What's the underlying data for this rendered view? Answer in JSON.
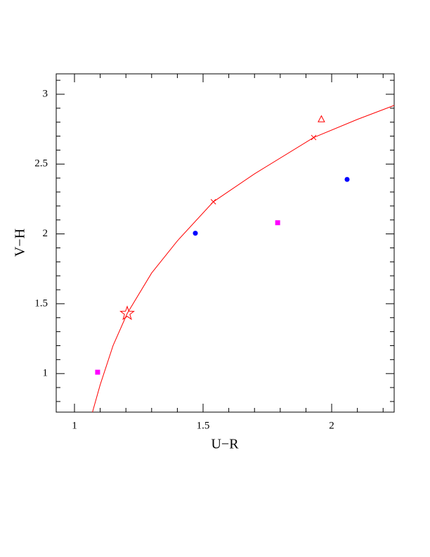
{
  "chart_data": {
    "type": "scatter",
    "xlabel": "U−R",
    "ylabel": "V−H",
    "xlim": [
      0.929,
      2.243
    ],
    "ylim": [
      0.724,
      3.146
    ],
    "xticks": [
      1,
      1.5,
      2
    ],
    "yticks": [
      1,
      1.5,
      2,
      2.5,
      3
    ],
    "xminorticks": [
      1.1,
      1.2,
      1.3,
      1.4,
      1.6,
      1.7,
      1.8,
      1.9,
      2.1,
      2.2
    ],
    "yminorticks": [
      0.8,
      0.9,
      1.1,
      1.2,
      1.3,
      1.4,
      1.6,
      1.7,
      1.8,
      1.9,
      2.1,
      2.2,
      2.3,
      2.4,
      2.6,
      2.7,
      2.8,
      2.9,
      3.1
    ],
    "series": [
      {
        "marker": "line",
        "color": "#ff0000",
        "x": [
          1.07,
          1.1,
          1.15,
          1.205,
          1.3,
          1.4,
          1.54,
          1.7,
          1.93,
          2.1,
          2.243
        ],
        "values": [
          0.724,
          0.92,
          1.2,
          1.43,
          1.72,
          1.95,
          2.23,
          2.43,
          2.69,
          2.82,
          2.92
        ]
      },
      {
        "marker": "circle",
        "color": "#0000ff",
        "x": [
          1.47,
          2.06
        ],
        "values": [
          2.005,
          2.39
        ]
      },
      {
        "marker": "square",
        "color": "#ff00ff",
        "x": [
          1.09,
          1.79
        ],
        "values": [
          1.01,
          2.08
        ]
      },
      {
        "marker": "star",
        "color": "#ff0000",
        "x": [
          1.205
        ],
        "values": [
          1.43
        ]
      },
      {
        "marker": "triangle",
        "color": "#ff0000",
        "x": [
          1.96
        ],
        "values": [
          2.82
        ]
      },
      {
        "marker": "cross",
        "color": "#ff0000",
        "x": [
          1.54,
          1.93
        ],
        "values": [
          2.23,
          2.69
        ]
      }
    ]
  }
}
